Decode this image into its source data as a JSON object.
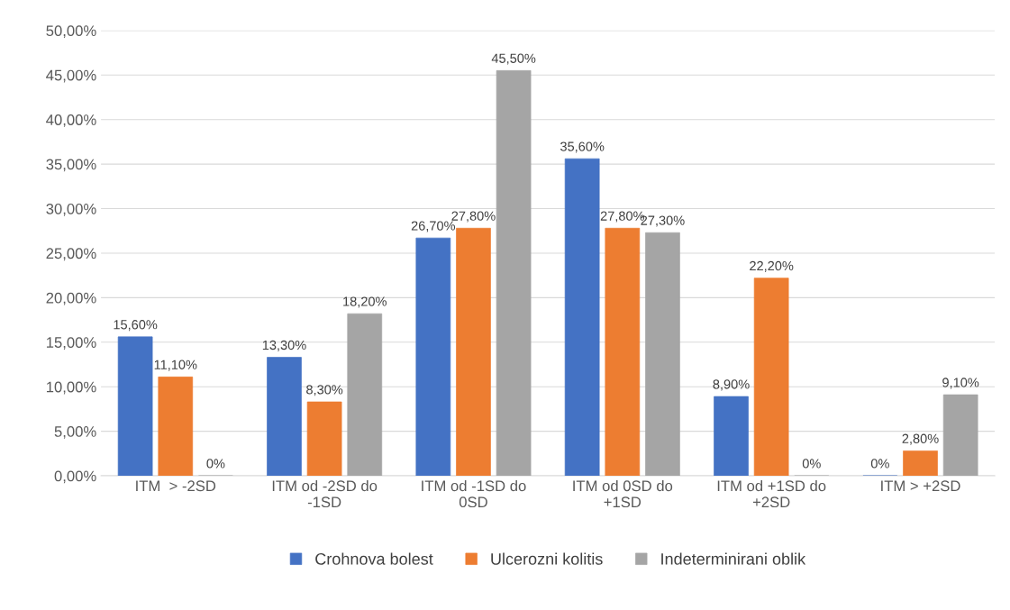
{
  "chart_data": {
    "type": "bar",
    "categories": [
      "ITM  > -2SD",
      "ITM od -2SD do\n-1SD",
      "ITM od -1SD do\n0SD",
      "ITM od 0SD do\n+1SD",
      "ITM od +1SD do\n+2SD",
      "ITM > +2SD"
    ],
    "series": [
      {
        "name": "Crohnova bolest",
        "color": "#4472c4",
        "values": [
          15.6,
          13.3,
          26.7,
          35.6,
          8.9,
          0
        ],
        "value_labels": [
          "15,60%",
          "13,30%",
          "26,70%",
          "35,60%",
          "8,90%",
          "0%"
        ]
      },
      {
        "name": "Ulcerozni kolitis",
        "color": "#ed7d31",
        "values": [
          11.1,
          8.3,
          27.8,
          27.8,
          22.2,
          2.8
        ],
        "value_labels": [
          "11,10%",
          "8,30%",
          "27,80%",
          "27,80%",
          "22,20%",
          "2,80%"
        ]
      },
      {
        "name": "Indeterminirani oblik",
        "color": "#a5a5a5",
        "values": [
          0,
          18.2,
          45.5,
          27.3,
          0,
          9.1
        ],
        "value_labels": [
          "0%",
          "18,20%",
          "45,50%",
          "27,30%",
          "0%",
          "9,10%"
        ]
      }
    ],
    "ylim": [
      0,
      50
    ],
    "yticks": [
      {
        "value": 0,
        "label": "0,00%"
      },
      {
        "value": 5,
        "label": "5,00%"
      },
      {
        "value": 10,
        "label": "10,00%"
      },
      {
        "value": 15,
        "label": "15,00%"
      },
      {
        "value": 20,
        "label": "20,00%"
      },
      {
        "value": 25,
        "label": "25,00%"
      },
      {
        "value": 30,
        "label": "30,00%"
      },
      {
        "value": 35,
        "label": "35,00%"
      },
      {
        "value": 40,
        "label": "40,00%"
      },
      {
        "value": 45,
        "label": "45,00%"
      },
      {
        "value": 50,
        "label": "50,00%"
      }
    ],
    "grid": "y",
    "legend": "bottom"
  }
}
